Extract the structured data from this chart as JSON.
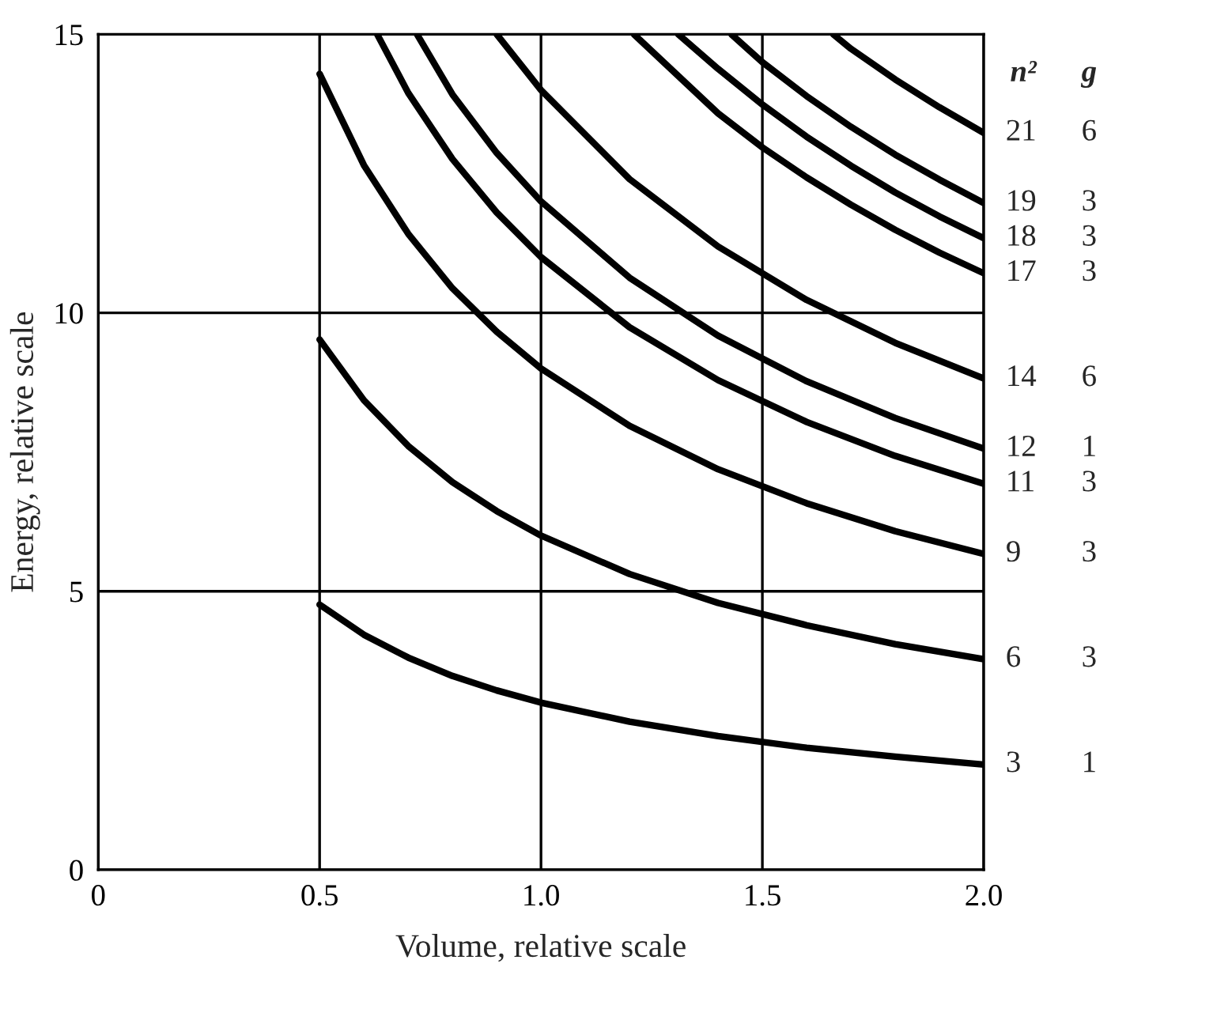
{
  "chart_data": {
    "type": "line",
    "xlabel": "Volume, relative scale",
    "ylabel": "Energy, relative scale",
    "xlim": [
      0,
      2.0
    ],
    "ylim": [
      0,
      15
    ],
    "xticks": [
      0,
      0.5,
      {
        "value": 1,
        "label": "1.0"
      },
      1.5,
      {
        "value": 2,
        "label": "2.0"
      }
    ],
    "yticks": [
      0,
      5,
      10,
      15
    ],
    "grid": true,
    "marker": "none",
    "line_style": "solid",
    "series": [
      {
        "name": "3",
        "color": "#000000",
        "x": [
          0.5,
          0.6,
          0.7,
          0.8,
          0.9,
          1.0,
          1.2,
          1.4,
          1.6,
          1.8,
          2.0
        ],
        "values": [
          4.76,
          4.22,
          3.81,
          3.48,
          3.22,
          3.0,
          2.66,
          2.4,
          2.19,
          2.03,
          1.89
        ]
      },
      {
        "name": "6",
        "color": "#000000",
        "x": [
          0.5,
          0.6,
          0.7,
          0.8,
          0.9,
          1.0,
          1.2,
          1.4,
          1.6,
          1.8,
          2.0
        ],
        "values": [
          9.52,
          8.43,
          7.61,
          6.96,
          6.44,
          6.0,
          5.31,
          4.79,
          4.39,
          4.05,
          3.78
        ]
      },
      {
        "name": "9",
        "color": "#000000",
        "x": [
          0.5,
          0.6,
          0.7,
          0.8,
          0.9,
          1.0,
          1.2,
          1.4,
          1.6,
          1.8,
          2.0
        ],
        "values": [
          14.29,
          12.65,
          11.42,
          10.44,
          9.66,
          9.0,
          7.97,
          7.19,
          6.58,
          6.08,
          5.67
        ]
      },
      {
        "name": "11",
        "color": "#000000",
        "x": [
          0.63,
          0.7,
          0.8,
          0.9,
          1.0,
          1.2,
          1.4,
          1.6,
          1.8,
          2.0
        ],
        "values": [
          15,
          13.95,
          12.76,
          11.8,
          11.0,
          9.74,
          8.79,
          8.04,
          7.43,
          6.93
        ]
      },
      {
        "name": "12",
        "color": "#000000",
        "x": [
          0.72,
          0.8,
          0.9,
          1.0,
          1.2,
          1.4,
          1.6,
          1.8,
          2.0
        ],
        "values": [
          15,
          13.92,
          12.87,
          12.0,
          10.63,
          9.59,
          8.77,
          8.11,
          7.56
        ]
      },
      {
        "name": "14",
        "color": "#000000",
        "x": [
          0.9,
          1.0,
          1.2,
          1.4,
          1.6,
          1.8,
          2.0
        ],
        "values": [
          15,
          14.0,
          12.4,
          11.19,
          10.23,
          9.46,
          8.82
        ]
      },
      {
        "name": "17",
        "color": "#000000",
        "x": [
          1.21,
          1.4,
          1.5,
          1.6,
          1.7,
          1.8,
          1.9,
          2.0
        ],
        "values": [
          15,
          13.58,
          12.97,
          12.43,
          11.94,
          11.49,
          11.08,
          10.71
        ]
      },
      {
        "name": "18",
        "color": "#000000",
        "x": [
          1.31,
          1.4,
          1.5,
          1.6,
          1.7,
          1.8,
          1.9,
          2.0
        ],
        "values": [
          15,
          14.38,
          13.74,
          13.16,
          12.64,
          12.16,
          11.73,
          11.34
        ]
      },
      {
        "name": "19",
        "color": "#000000",
        "x": [
          1.43,
          1.5,
          1.6,
          1.7,
          1.8,
          1.9,
          2.0
        ],
        "values": [
          15,
          14.5,
          13.89,
          13.34,
          12.84,
          12.39,
          11.97
        ]
      },
      {
        "name": "21",
        "color": "#000000",
        "x": [
          1.66,
          1.7,
          1.8,
          1.9,
          2.0
        ],
        "values": [
          15,
          14.74,
          14.19,
          13.69,
          13.23
        ]
      }
    ],
    "annotations": [
      "n²",
      "g",
      "1",
      "3",
      "3",
      "3",
      "1",
      "6",
      "3",
      "3",
      "3",
      "6"
    ]
  }
}
